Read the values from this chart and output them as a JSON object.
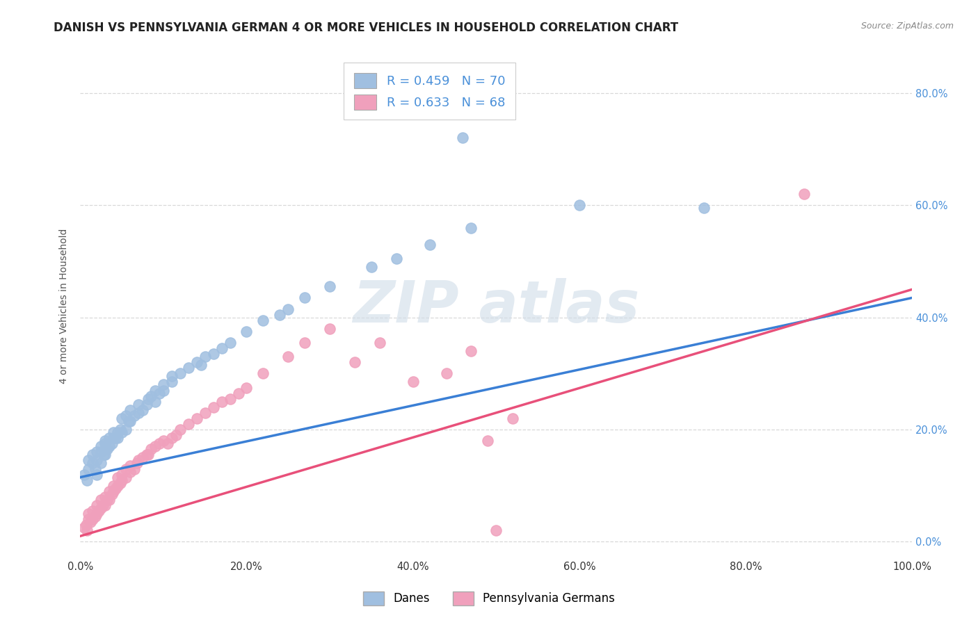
{
  "title": "DANISH VS PENNSYLVANIA GERMAN 4 OR MORE VEHICLES IN HOUSEHOLD CORRELATION CHART",
  "source": "Source: ZipAtlas.com",
  "ylabel": "4 or more Vehicles in Household",
  "xlim": [
    0.0,
    1.0
  ],
  "ylim": [
    -0.03,
    0.87
  ],
  "xticks": [
    0.0,
    0.2,
    0.4,
    0.6,
    0.8,
    1.0
  ],
  "xtick_labels": [
    "0.0%",
    "20.0%",
    "40.0%",
    "60.0%",
    "80.0%",
    "100.0%"
  ],
  "ytick_vals": [
    0.0,
    0.2,
    0.4,
    0.6,
    0.8
  ],
  "ytick_labels_right": [
    "0.0%",
    "20.0%",
    "40.0%",
    "60.0%",
    "80.0%"
  ],
  "legend_entries": [
    {
      "label": "R = 0.459   N = 70",
      "color": "#a8c8e8"
    },
    {
      "label": "R = 0.633   N = 68",
      "color": "#f4a8c0"
    }
  ],
  "legend_bottom": [
    "Danes",
    "Pennsylvania Germans"
  ],
  "danes_scatter_color": "#a0bfe0",
  "penn_scatter_color": "#f0a0bc",
  "danes_line_color": "#3a7fd5",
  "penn_line_color": "#e8507a",
  "right_tick_color": "#4a90d9",
  "background_color": "#ffffff",
  "grid_color": "#d8d8d8",
  "title_fontsize": 12,
  "axis_fontsize": 10,
  "tick_fontsize": 10.5,
  "watermark_color": "#d0dce8",
  "danes_intercept": 0.115,
  "danes_slope": 0.32,
  "penn_intercept": 0.01,
  "penn_slope": 0.44,
  "danes_x": [
    0.005,
    0.008,
    0.01,
    0.01,
    0.015,
    0.015,
    0.018,
    0.02,
    0.02,
    0.02,
    0.025,
    0.025,
    0.025,
    0.028,
    0.03,
    0.03,
    0.03,
    0.03,
    0.032,
    0.035,
    0.035,
    0.038,
    0.04,
    0.04,
    0.042,
    0.045,
    0.045,
    0.048,
    0.05,
    0.05,
    0.055,
    0.055,
    0.058,
    0.06,
    0.06,
    0.065,
    0.07,
    0.07,
    0.075,
    0.08,
    0.082,
    0.085,
    0.09,
    0.09,
    0.095,
    0.1,
    0.1,
    0.11,
    0.11,
    0.12,
    0.13,
    0.14,
    0.145,
    0.15,
    0.16,
    0.17,
    0.18,
    0.2,
    0.22,
    0.24,
    0.25,
    0.27,
    0.3,
    0.35,
    0.38,
    0.42,
    0.47,
    0.6,
    0.75,
    0.46
  ],
  "danes_y": [
    0.12,
    0.11,
    0.13,
    0.145,
    0.14,
    0.155,
    0.13,
    0.12,
    0.145,
    0.16,
    0.14,
    0.16,
    0.17,
    0.155,
    0.155,
    0.165,
    0.175,
    0.18,
    0.165,
    0.17,
    0.185,
    0.175,
    0.185,
    0.195,
    0.185,
    0.185,
    0.195,
    0.2,
    0.195,
    0.22,
    0.2,
    0.225,
    0.215,
    0.215,
    0.235,
    0.225,
    0.23,
    0.245,
    0.235,
    0.245,
    0.255,
    0.26,
    0.25,
    0.27,
    0.265,
    0.27,
    0.28,
    0.285,
    0.295,
    0.3,
    0.31,
    0.32,
    0.315,
    0.33,
    0.335,
    0.345,
    0.355,
    0.375,
    0.395,
    0.405,
    0.415,
    0.435,
    0.455,
    0.49,
    0.505,
    0.53,
    0.56,
    0.6,
    0.595,
    0.72
  ],
  "penn_x": [
    0.005,
    0.007,
    0.008,
    0.01,
    0.01,
    0.012,
    0.015,
    0.015,
    0.018,
    0.02,
    0.02,
    0.022,
    0.025,
    0.025,
    0.027,
    0.03,
    0.03,
    0.032,
    0.035,
    0.035,
    0.038,
    0.04,
    0.04,
    0.042,
    0.045,
    0.045,
    0.048,
    0.05,
    0.05,
    0.055,
    0.055,
    0.06,
    0.06,
    0.065,
    0.068,
    0.07,
    0.075,
    0.08,
    0.082,
    0.085,
    0.09,
    0.095,
    0.1,
    0.105,
    0.11,
    0.115,
    0.12,
    0.13,
    0.14,
    0.15,
    0.16,
    0.17,
    0.18,
    0.19,
    0.2,
    0.22,
    0.25,
    0.27,
    0.3,
    0.33,
    0.36,
    0.4,
    0.44,
    0.47,
    0.49,
    0.52,
    0.87,
    0.5
  ],
  "penn_y": [
    0.025,
    0.03,
    0.02,
    0.04,
    0.05,
    0.035,
    0.04,
    0.055,
    0.045,
    0.05,
    0.065,
    0.055,
    0.06,
    0.075,
    0.065,
    0.065,
    0.08,
    0.075,
    0.075,
    0.09,
    0.085,
    0.09,
    0.1,
    0.095,
    0.1,
    0.115,
    0.105,
    0.11,
    0.12,
    0.115,
    0.13,
    0.125,
    0.135,
    0.13,
    0.14,
    0.145,
    0.15,
    0.155,
    0.155,
    0.165,
    0.17,
    0.175,
    0.18,
    0.175,
    0.185,
    0.19,
    0.2,
    0.21,
    0.22,
    0.23,
    0.24,
    0.25,
    0.255,
    0.265,
    0.275,
    0.3,
    0.33,
    0.355,
    0.38,
    0.32,
    0.355,
    0.285,
    0.3,
    0.34,
    0.18,
    0.22,
    0.62,
    0.02
  ]
}
